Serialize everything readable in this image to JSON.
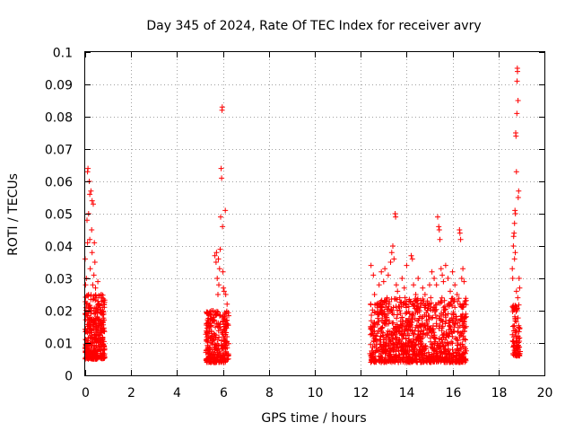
{
  "chart_data": {
    "type": "scatter",
    "title": "Day 345 of 2024, Rate Of TEC Index for receiver avry",
    "xlabel": "GPS time / hours",
    "ylabel": "ROTI / TECUs",
    "xlim": [
      0,
      20
    ],
    "ylim": [
      0,
      0.1
    ],
    "x_ticks": [
      "0",
      "2",
      "4",
      "6",
      "8",
      "10",
      "12",
      "14",
      "16",
      "18",
      "20"
    ],
    "y_ticks": [
      "0",
      "0.01",
      "0.02",
      "0.03",
      "0.04",
      "0.05",
      "0.06",
      "0.07",
      "0.08",
      "0.09",
      "0.1"
    ],
    "grid": true,
    "marker": "plus",
    "marker_color": "#ff0000",
    "series": [
      {
        "name": "ROTI",
        "points": [
          [
            0.0,
            0.036
          ],
          [
            0.02,
            0.028
          ],
          [
            0.05,
            0.022
          ],
          [
            0.05,
            0.03
          ],
          [
            0.08,
            0.048
          ],
          [
            0.1,
            0.063
          ],
          [
            0.1,
            0.041
          ],
          [
            0.12,
            0.064
          ],
          [
            0.15,
            0.05
          ],
          [
            0.15,
            0.025
          ],
          [
            0.18,
            0.06
          ],
          [
            0.2,
            0.056
          ],
          [
            0.2,
            0.042
          ],
          [
            0.22,
            0.033
          ],
          [
            0.25,
            0.057
          ],
          [
            0.28,
            0.045
          ],
          [
            0.3,
            0.054
          ],
          [
            0.3,
            0.038
          ],
          [
            0.33,
            0.028
          ],
          [
            0.35,
            0.053
          ],
          [
            0.38,
            0.031
          ],
          [
            0.4,
            0.041
          ],
          [
            0.42,
            0.035
          ],
          [
            0.45,
            0.027
          ],
          [
            0.5,
            0.024
          ],
          [
            0.55,
            0.029
          ],
          [
            0.6,
            0.022
          ],
          [
            0.7,
            0.025
          ],
          [
            0.75,
            0.021
          ],
          [
            5.3,
            0.016
          ],
          [
            5.45,
            0.019
          ],
          [
            5.5,
            0.02
          ],
          [
            5.6,
            0.018
          ],
          [
            5.65,
            0.037
          ],
          [
            5.7,
            0.035
          ],
          [
            5.72,
            0.038
          ],
          [
            5.75,
            0.03
          ],
          [
            5.78,
            0.025
          ],
          [
            5.8,
            0.036
          ],
          [
            5.82,
            0.028
          ],
          [
            5.85,
            0.033
          ],
          [
            5.88,
            0.039
          ],
          [
            5.9,
            0.049
          ],
          [
            5.92,
            0.064
          ],
          [
            5.94,
            0.061
          ],
          [
            5.96,
            0.082
          ],
          [
            5.97,
            0.083
          ],
          [
            5.98,
            0.046
          ],
          [
            6.0,
            0.032
          ],
          [
            6.02,
            0.027
          ],
          [
            6.05,
            0.026
          ],
          [
            6.1,
            0.051
          ],
          [
            6.12,
            0.025
          ],
          [
            6.18,
            0.022
          ],
          [
            12.45,
            0.034
          ],
          [
            12.55,
            0.031
          ],
          [
            12.6,
            0.025
          ],
          [
            12.7,
            0.022
          ],
          [
            12.8,
            0.028
          ],
          [
            12.9,
            0.032
          ],
          [
            13.0,
            0.029
          ],
          [
            13.05,
            0.033
          ],
          [
            13.15,
            0.024
          ],
          [
            13.2,
            0.031
          ],
          [
            13.3,
            0.035
          ],
          [
            13.35,
            0.038
          ],
          [
            13.4,
            0.04
          ],
          [
            13.45,
            0.036
          ],
          [
            13.5,
            0.05
          ],
          [
            13.52,
            0.049
          ],
          [
            13.55,
            0.028
          ],
          [
            13.6,
            0.026
          ],
          [
            13.7,
            0.024
          ],
          [
            13.8,
            0.03
          ],
          [
            13.9,
            0.027
          ],
          [
            14.0,
            0.034
          ],
          [
            14.1,
            0.023
          ],
          [
            14.2,
            0.037
          ],
          [
            14.25,
            0.036
          ],
          [
            14.3,
            0.028
          ],
          [
            14.4,
            0.025
          ],
          [
            14.5,
            0.03
          ],
          [
            14.6,
            0.021
          ],
          [
            14.7,
            0.027
          ],
          [
            14.8,
            0.025
          ],
          [
            14.9,
            0.023
          ],
          [
            15.0,
            0.028
          ],
          [
            15.05,
            0.024
          ],
          [
            15.1,
            0.032
          ],
          [
            15.2,
            0.03
          ],
          [
            15.3,
            0.028
          ],
          [
            15.35,
            0.049
          ],
          [
            15.4,
            0.046
          ],
          [
            15.42,
            0.045
          ],
          [
            15.45,
            0.042
          ],
          [
            15.5,
            0.033
          ],
          [
            15.55,
            0.031
          ],
          [
            15.6,
            0.029
          ],
          [
            15.7,
            0.034
          ],
          [
            15.8,
            0.03
          ],
          [
            15.9,
            0.026
          ],
          [
            16.0,
            0.032
          ],
          [
            16.1,
            0.028
          ],
          [
            16.2,
            0.025
          ],
          [
            16.3,
            0.045
          ],
          [
            16.32,
            0.044
          ],
          [
            16.35,
            0.042
          ],
          [
            16.4,
            0.03
          ],
          [
            16.45,
            0.033
          ],
          [
            16.5,
            0.029
          ],
          [
            18.6,
            0.033
          ],
          [
            18.62,
            0.03
          ],
          [
            18.65,
            0.04
          ],
          [
            18.66,
            0.043
          ],
          [
            18.68,
            0.044
          ],
          [
            18.7,
            0.047
          ],
          [
            18.72,
            0.051
          ],
          [
            18.74,
            0.05
          ],
          [
            18.75,
            0.075
          ],
          [
            18.76,
            0.074
          ],
          [
            18.78,
            0.063
          ],
          [
            18.8,
            0.081
          ],
          [
            18.81,
            0.091
          ],
          [
            18.82,
            0.095
          ],
          [
            18.83,
            0.094
          ],
          [
            18.85,
            0.085
          ],
          [
            18.86,
            0.055
          ],
          [
            18.88,
            0.057
          ],
          [
            18.9,
            0.03
          ],
          [
            18.92,
            0.027
          ],
          [
            18.7,
            0.036
          ],
          [
            18.73,
            0.038
          ],
          [
            18.78,
            0.026
          ],
          [
            18.84,
            0.024
          ]
        ],
        "dense_bands": [
          {
            "x_from": 0.0,
            "x_to": 0.85,
            "y_low": 0.005,
            "y_high": 0.025,
            "count": 360
          },
          {
            "x_from": 5.25,
            "x_to": 6.25,
            "y_low": 0.004,
            "y_high": 0.02,
            "count": 300
          },
          {
            "x_from": 12.4,
            "x_to": 16.6,
            "y_low": 0.004,
            "y_high": 0.024,
            "count": 1100
          },
          {
            "x_from": 18.6,
            "x_to": 18.95,
            "y_low": 0.006,
            "y_high": 0.022,
            "count": 90
          }
        ]
      }
    ]
  }
}
